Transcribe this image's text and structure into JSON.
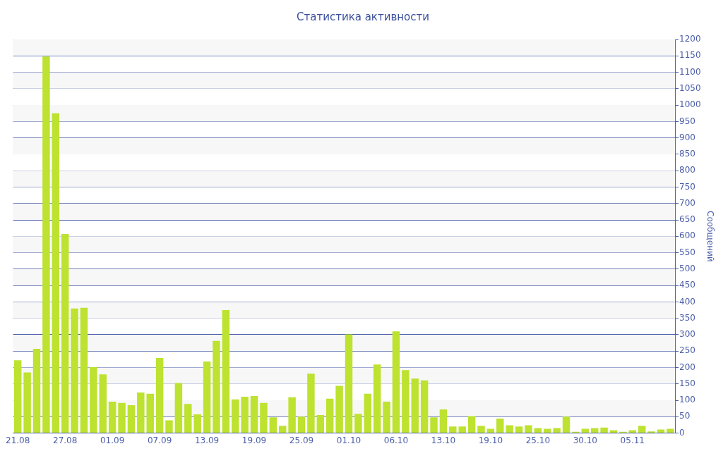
{
  "chart_data": {
    "type": "bar",
    "title": "Статистика активности",
    "ylabel": "Сообщений",
    "categories": [
      "21.08",
      null,
      null,
      null,
      null,
      "27.08",
      null,
      null,
      null,
      null,
      "01.09",
      null,
      null,
      null,
      null,
      "07.09",
      null,
      null,
      null,
      null,
      "13.09",
      null,
      null,
      null,
      null,
      "19.09",
      null,
      null,
      null,
      null,
      "25.09",
      null,
      null,
      null,
      null,
      "01.10",
      null,
      null,
      null,
      null,
      "06.10",
      null,
      null,
      null,
      null,
      "13.10",
      null,
      null,
      null,
      null,
      "19.10",
      null,
      null,
      null,
      null,
      "25.10",
      null,
      null,
      null,
      null,
      "30.10",
      null,
      null,
      null,
      null,
      "05.11",
      null,
      null,
      null,
      null
    ],
    "series": [
      {
        "color": "#bde22f",
        "values": [
          222,
          185,
          257,
          1148,
          975,
          607,
          380,
          382,
          201,
          179,
          96,
          92,
          85,
          124,
          120,
          229,
          39,
          153,
          89,
          57,
          218,
          281,
          375,
          103,
          111,
          113,
          92,
          48,
          22,
          109,
          50,
          181,
          55,
          105,
          144,
          301,
          59,
          120,
          209,
          96,
          310,
          192,
          166,
          161,
          48,
          72,
          20,
          20,
          52,
          22,
          13,
          44,
          24,
          20,
          24,
          15,
          13,
          15,
          50,
          4,
          13,
          15,
          17,
          9,
          4,
          9,
          22,
          5,
          11,
          13
        ]
      }
    ],
    "ylim": [
      0,
      1200
    ],
    "yticks": [
      0,
      50,
      100,
      150,
      200,
      250,
      300,
      350,
      400,
      450,
      500,
      550,
      600,
      650,
      700,
      750,
      800,
      850,
      900,
      950,
      1000,
      1050,
      1100,
      1150,
      1200
    ],
    "grid": "y",
    "legend": false
  }
}
